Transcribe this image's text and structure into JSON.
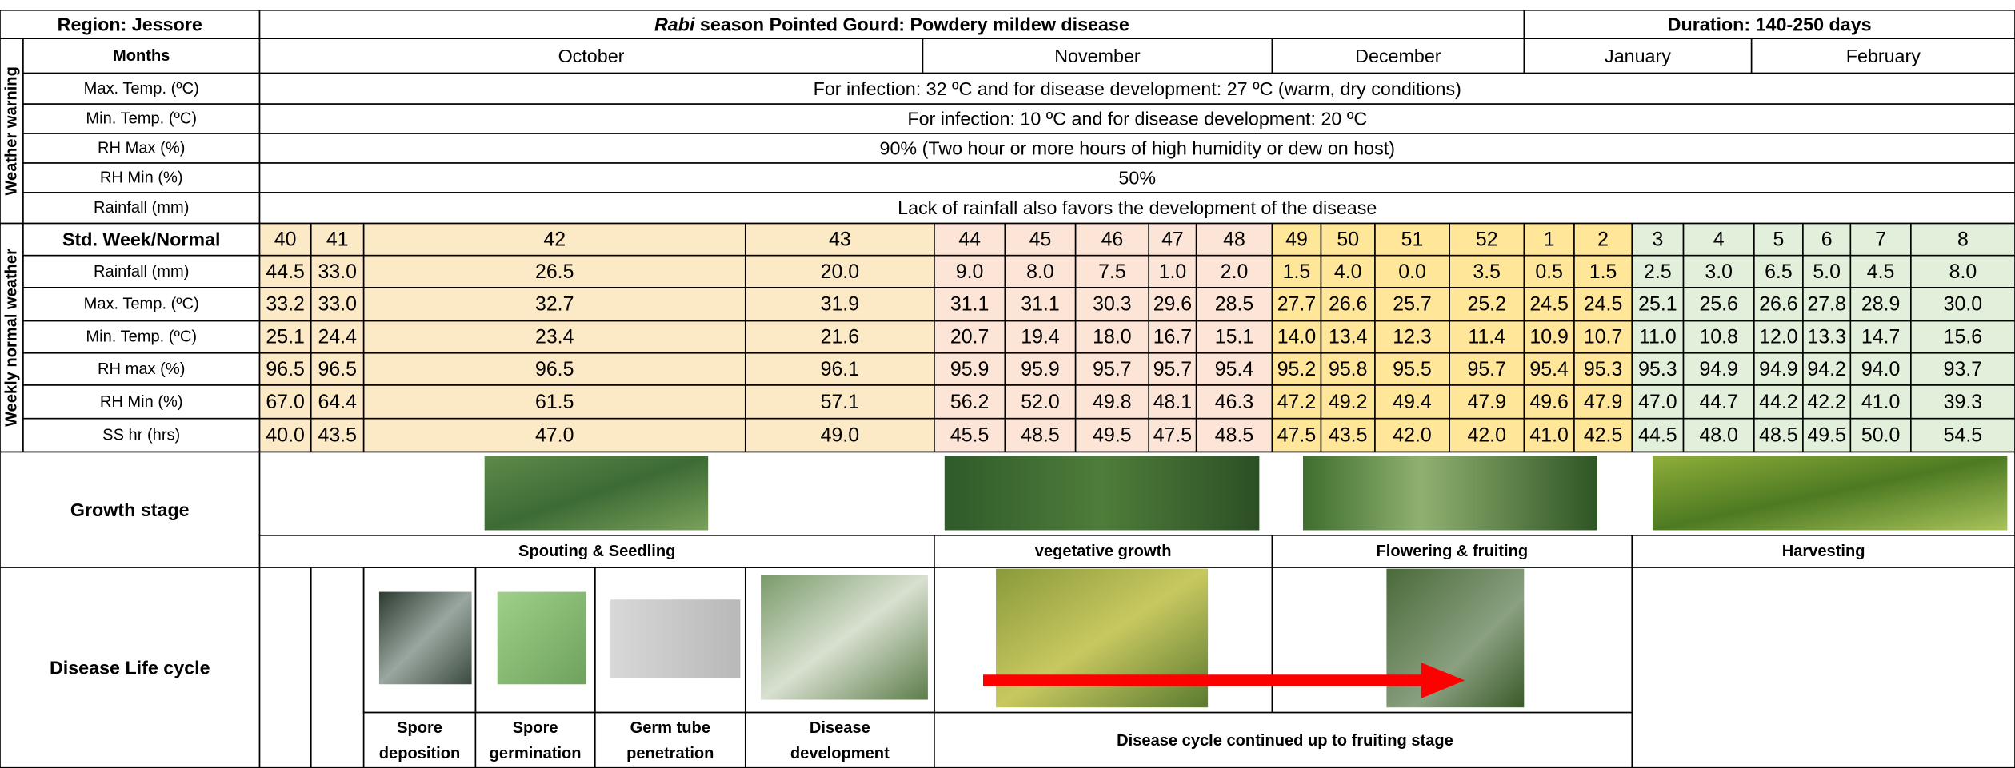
{
  "header": {
    "region": "Region: Jessore",
    "title_italic": "Rabi",
    "title": " season Pointed Gourd: Powdery mildew disease",
    "duration": "Duration: 140-250  days"
  },
  "months": {
    "label": "Months",
    "names": [
      "October",
      "November",
      "December",
      "January",
      "February"
    ]
  },
  "weather_warning": {
    "label": "Weather warning",
    "rows": [
      {
        "label": "Max. Temp. (ºC)",
        "text": "For infection: 32 ºC and for disease development: 27 ºC (warm, dry conditions)"
      },
      {
        "label": "Min. Temp. (ºC)",
        "text": "For infection: 10 ºC and for disease development: 20 ºC"
      },
      {
        "label": "RH Max (%)",
        "text": "90% (Two hour or more hours of high humidity or dew on host)"
      },
      {
        "label": "RH Min (%)",
        "text": "50%"
      },
      {
        "label": "Rainfall (mm)",
        "text": "Lack of rainfall also favors the development of the disease"
      }
    ]
  },
  "weekly": {
    "label": "Weekly normal weather",
    "week_label": "Std. Week/Normal",
    "weeks": [
      40,
      41,
      42,
      43,
      44,
      45,
      46,
      47,
      48,
      49,
      50,
      51,
      52,
      1,
      2,
      3,
      4,
      5,
      6,
      7,
      8
    ],
    "colors": [
      "#fce9c5",
      "#fce9c5",
      "#fce9c5",
      "#fce9c5",
      "#fce4d6",
      "#fce4d6",
      "#fce4d6",
      "#fce4d6",
      "#fce4d6",
      "#ffe699",
      "#ffe699",
      "#ffe699",
      "#ffe699",
      "#ffe699",
      "#ffe699",
      "#e2efda",
      "#e2efda",
      "#e2efda",
      "#e2efda",
      "#e2efda",
      "#e2efda"
    ],
    "rows": [
      {
        "label": "Rainfall (mm)",
        "values": [
          "44.5",
          "33.0",
          "26.5",
          "20.0",
          "9.0",
          "8.0",
          "7.5",
          "1.0",
          "2.0",
          "1.5",
          "4.0",
          "0.0",
          "3.5",
          "0.5",
          "1.5",
          "2.5",
          "3.0",
          "6.5",
          "5.0",
          "4.5",
          "8.0"
        ]
      },
      {
        "label": "Max. Temp. (ºC)",
        "values": [
          "33.2",
          "33.0",
          "32.7",
          "31.9",
          "31.1",
          "31.1",
          "30.3",
          "29.6",
          "28.5",
          "27.7",
          "26.6",
          "25.7",
          "25.2",
          "24.5",
          "24.5",
          "25.1",
          "25.6",
          "26.6",
          "27.8",
          "28.9",
          "30.0"
        ]
      },
      {
        "label": "Min. Temp. (ºC)",
        "values": [
          "25.1",
          "24.4",
          "23.4",
          "21.6",
          "20.7",
          "19.4",
          "18.0",
          "16.7",
          "15.1",
          "14.0",
          "13.4",
          "12.3",
          "11.4",
          "10.9",
          "10.7",
          "11.0",
          "10.8",
          "12.0",
          "13.3",
          "14.7",
          "15.6"
        ]
      },
      {
        "label": "RH max (%)",
        "values": [
          "96.5",
          "96.5",
          "96.5",
          "96.1",
          "95.9",
          "95.9",
          "95.7",
          "95.7",
          "95.4",
          "95.2",
          "95.8",
          "95.5",
          "95.7",
          "95.4",
          "95.3",
          "95.3",
          "94.9",
          "94.9",
          "94.2",
          "94.0",
          "93.7"
        ]
      },
      {
        "label": "RH Min (%)",
        "values": [
          "67.0",
          "64.4",
          "61.5",
          "57.1",
          "56.2",
          "52.0",
          "49.8",
          "48.1",
          "46.3",
          "47.2",
          "49.2",
          "49.4",
          "47.9",
          "49.6",
          "47.9",
          "47.0",
          "44.7",
          "44.2",
          "42.2",
          "41.0",
          "39.3"
        ]
      },
      {
        "label": "SS hr (hrs)",
        "values": [
          "40.0",
          "43.5",
          "47.0",
          "49.0",
          "45.5",
          "48.5",
          "49.5",
          "47.5",
          "48.5",
          "47.5",
          "43.5",
          "42.0",
          "42.0",
          "41.0",
          "42.5",
          "44.5",
          "48.0",
          "48.5",
          "49.5",
          "50.0",
          "54.5"
        ]
      }
    ]
  },
  "growth_stage": {
    "label": "Growth stage",
    "stages": [
      "Spouting & Seedling",
      "vegetative growth",
      "Flowering & fruiting",
      "Harvesting"
    ]
  },
  "disease_life_cycle": {
    "label": "Disease  Life cycle",
    "steps": [
      [
        "Spore",
        "deposition"
      ],
      [
        "Spore",
        "germination"
      ],
      [
        "Germ tube",
        "penetration"
      ],
      [
        "Disease",
        "development"
      ]
    ],
    "continued": "Disease cycle continued up to fruiting stage"
  }
}
